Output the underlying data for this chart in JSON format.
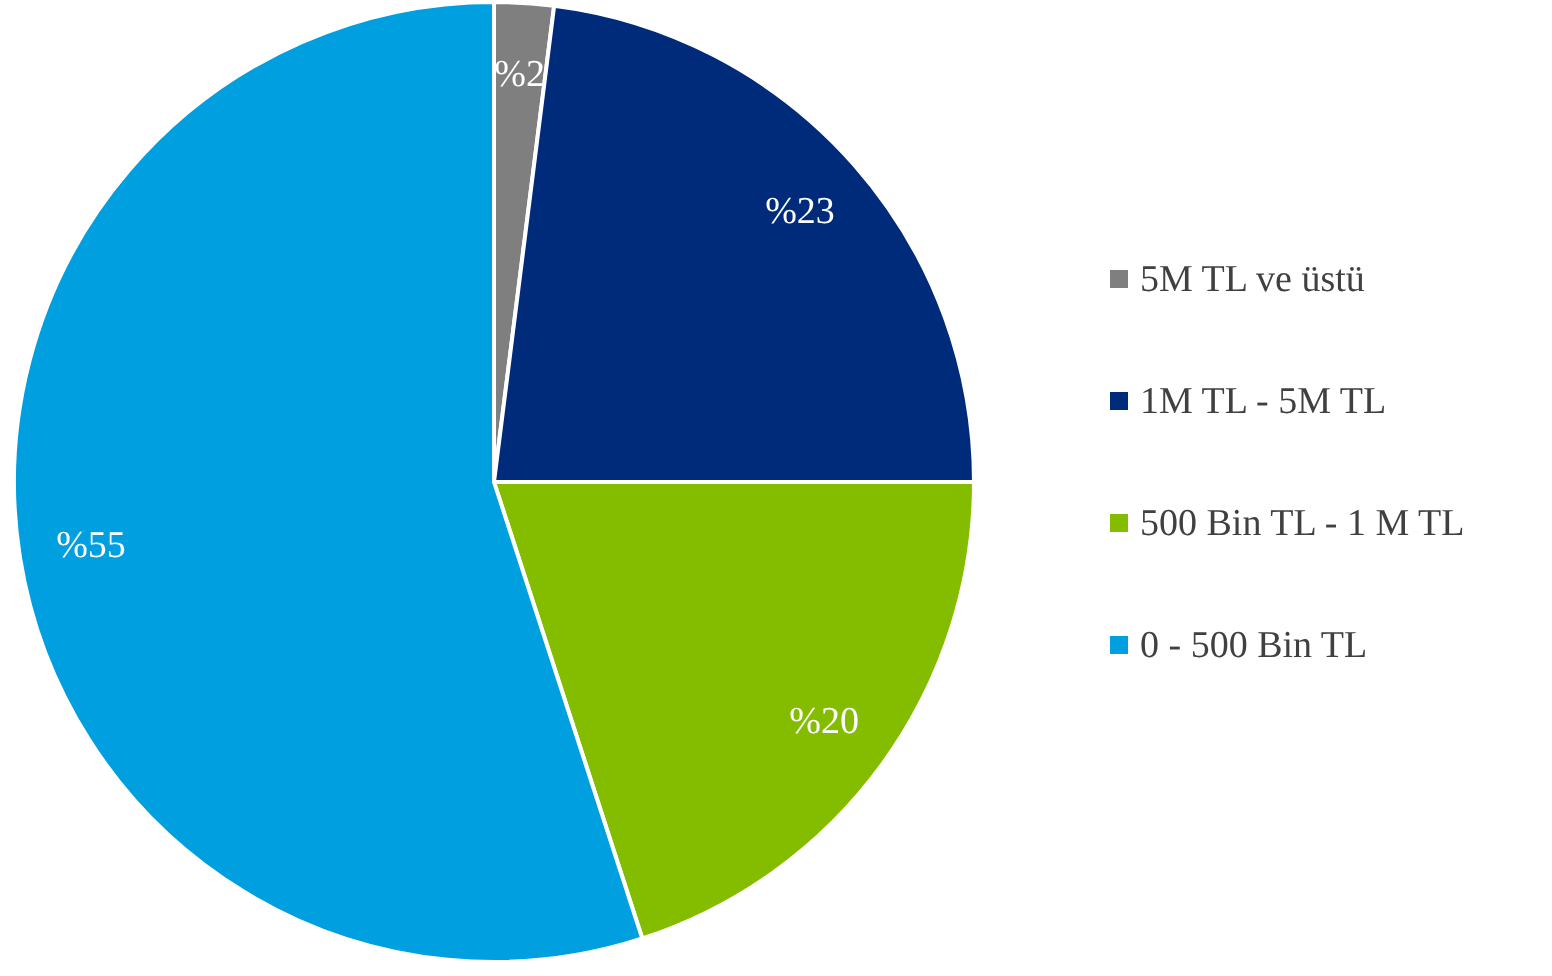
{
  "chart_data": {
    "type": "pie",
    "categories": [
      "5M TL ve üstü",
      "1M TL - 5M TL",
      "500 Bin TL - 1 M TL",
      "0 - 500 Bin TL"
    ],
    "values": [
      2,
      23,
      20,
      55
    ],
    "colors": [
      "#7f7f7f",
      "#002b7a",
      "#84bd00",
      "#009fdf"
    ],
    "value_labels": [
      "%2",
      "%23",
      "%20",
      "%55"
    ],
    "legend": "right"
  }
}
